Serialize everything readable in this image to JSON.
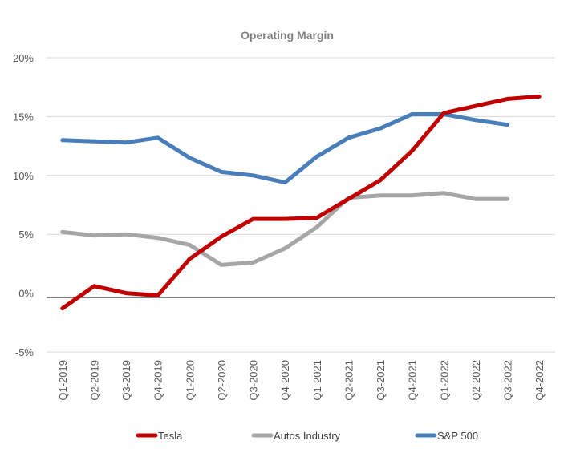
{
  "chart_data": {
    "type": "line",
    "title": "Operating Margin",
    "xlabel": "",
    "ylabel": "",
    "ylim": [
      -5,
      20
    ],
    "yticks": [
      -5,
      0,
      5,
      10,
      15,
      20
    ],
    "ytick_labels": [
      "-5%",
      "0%",
      "5%",
      "10%",
      "15%",
      "20%"
    ],
    "grid": true,
    "legend_position": "bottom",
    "categories": [
      "Q1-2019",
      "Q2-2019",
      "Q3-2019",
      "Q4-2019",
      "Q1-2020",
      "Q2-2020",
      "Q3-2020",
      "Q4-2020",
      "Q1-2021",
      "Q2-2021",
      "Q3-2021",
      "Q4-2021",
      "Q1-2022",
      "Q2-2022",
      "Q3-2022",
      "Q4-2022"
    ],
    "series": [
      {
        "name": "Tesla",
        "color": "#c00000",
        "values": [
          -1.3,
          0.6,
          0.0,
          -0.2,
          2.9,
          4.8,
          6.3,
          6.3,
          6.4,
          8.0,
          9.6,
          12.1,
          15.3,
          15.9,
          16.5,
          16.7
        ]
      },
      {
        "name": "Autos Industry",
        "color": "#a6a6a6",
        "values": [
          5.2,
          4.9,
          5.0,
          4.7,
          4.1,
          2.4,
          2.6,
          3.8,
          5.6,
          8.1,
          8.3,
          8.3,
          8.5,
          8.0,
          8.0,
          null
        ]
      },
      {
        "name": "S&P 500",
        "color": "#4a7ebb",
        "values": [
          13.0,
          12.9,
          12.8,
          13.2,
          11.5,
          10.3,
          10.0,
          9.4,
          11.6,
          13.2,
          14.0,
          15.2,
          15.2,
          14.7,
          14.3,
          null
        ]
      }
    ]
  }
}
